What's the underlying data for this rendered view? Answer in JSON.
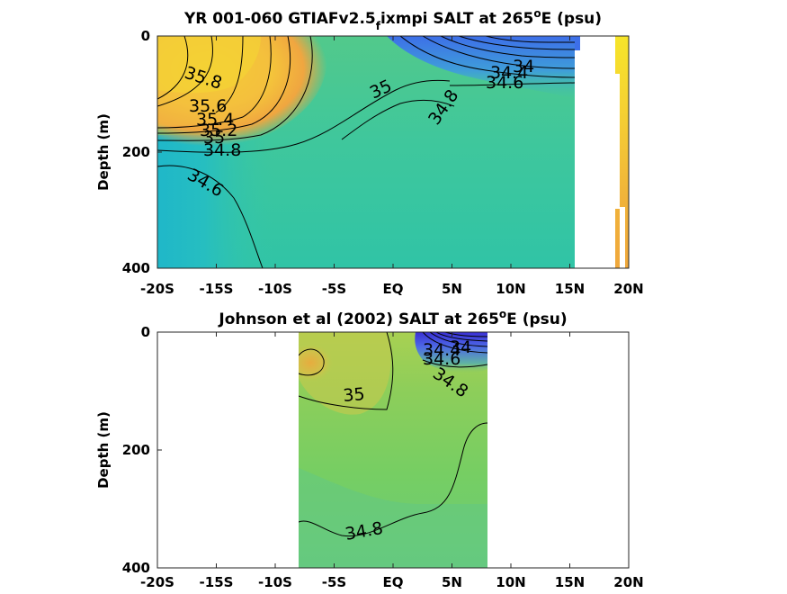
{
  "chart_data": [
    {
      "type": "heatmap",
      "title_main": "YR 001-060 GTIAFv2.5",
      "title_sub": "f",
      "title_rest": "ixmpi SALT at 265",
      "title_sup": "o",
      "title_end": "E (psu)",
      "ylabel": "Depth (m)",
      "xlim": [
        -20,
        20
      ],
      "ylim": [
        0,
        400
      ],
      "xticks": [
        "-20S",
        "-15S",
        "-10S",
        "-5S",
        "EQ",
        "5N",
        "10N",
        "15N",
        "20N"
      ],
      "yticks": [
        "0",
        "200",
        "400"
      ],
      "data_extent_x": [
        -20,
        15
      ],
      "contour_levels": [
        34.0,
        34.2,
        34.4,
        34.6,
        34.8,
        35.0,
        35.2,
        35.4,
        35.6,
        35.8
      ],
      "contour_labels": [
        "35.8",
        "35.6",
        "35.4",
        "35.2",
        "35",
        "34.8",
        "34.6",
        "35",
        "34.8",
        "34",
        "34.4",
        "34.6"
      ],
      "colors": {
        "low": "#3a5bd9",
        "mid": "#3cc9a0",
        "high": "#f5e42b"
      }
    },
    {
      "type": "heatmap",
      "title_main": "Johnson et al (2002) SALT at 265",
      "title_sup": "o",
      "title_end": "E (psu)",
      "ylabel": "Depth (m)",
      "xlim": [
        -20,
        20
      ],
      "ylim": [
        0,
        400
      ],
      "xticks": [
        "-20S",
        "-15S",
        "-10S",
        "-5S",
        "EQ",
        "5N",
        "10N",
        "15N",
        "20N"
      ],
      "yticks": [
        "0",
        "200",
        "400"
      ],
      "data_extent_x": [
        -8,
        8
      ],
      "contour_labels": [
        "35",
        "34.8",
        "34.6",
        "34.8",
        "34",
        "34.4"
      ],
      "colors": {
        "low": "#3a2fd0",
        "mid": "#7ccf63",
        "high": "#e9b43a"
      }
    }
  ]
}
